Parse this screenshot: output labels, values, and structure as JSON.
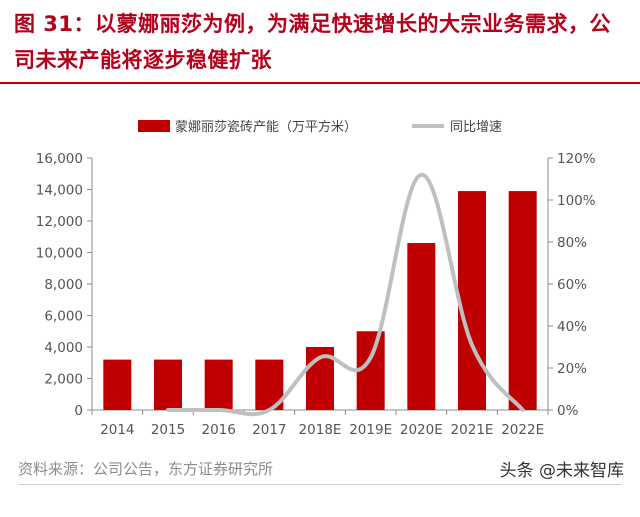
{
  "figure": {
    "title": "图 31：以蒙娜丽莎为例，为满足快速增长的大宗业务需求，公司未来产能将逐步稳健扩张",
    "source": "资料来源：公司公告，东方证券研究所",
    "watermark": "头条 @未来智库"
  },
  "chart_data": {
    "type": "bar",
    "categories": [
      "2014",
      "2015",
      "2016",
      "2017",
      "2018E",
      "2019E",
      "2020E",
      "2021E",
      "2022E"
    ],
    "series": [
      {
        "name": "蒙娜丽莎瓷砖产能（万平方米）",
        "type": "bar",
        "axis": "left",
        "color": "#c00000",
        "values": [
          3200,
          3200,
          3200,
          3200,
          4000,
          5000,
          10600,
          13900,
          13900
        ]
      },
      {
        "name": "同比增速",
        "type": "line",
        "axis": "right",
        "color": "#bfbfbf",
        "values": [
          null,
          0,
          0,
          0,
          0.25,
          0.25,
          1.12,
          0.31,
          0
        ]
      }
    ],
    "y_left": {
      "min": 0,
      "max": 16000,
      "ticks": [
        0,
        2000,
        4000,
        6000,
        8000,
        10000,
        12000,
        14000,
        16000
      ],
      "tick_labels": [
        "0",
        "2,000",
        "4,000",
        "6,000",
        "8,000",
        "10,000",
        "12,000",
        "14,000",
        "16,000"
      ]
    },
    "y_right": {
      "min": 0,
      "max": 1.2,
      "ticks": [
        0,
        0.2,
        0.4,
        0.6,
        0.8,
        1.0,
        1.2
      ],
      "tick_labels": [
        "0%",
        "20%",
        "40%",
        "60%",
        "80%",
        "100%",
        "120%"
      ]
    },
    "grid": false,
    "legend_position": "top"
  }
}
